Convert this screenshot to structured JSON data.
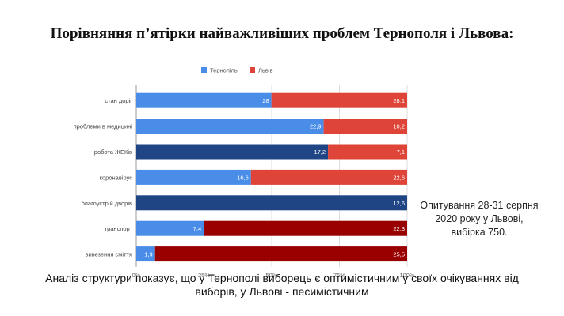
{
  "page": {
    "title": "Порівняння п’ятірки найважливіших проблем Тернополя і Львова:",
    "note": "Опитування 28-31 серпня 2020 року у Львові, вибірка 750.",
    "caption": "Аналіз структури показує, що у Тернополі виборець є оптимістичним у своїх очікуваннях від виборів, у Львові - песимістичним"
  },
  "chart_data": {
    "type": "bar",
    "orientation": "horizontal",
    "stacking": "percent",
    "categories": [
      "стан доріг",
      "проблеми в медицині",
      "робота ЖЕКів",
      "коронавірус",
      "благоустрій дворів",
      "транспорт",
      "вивезення сміття"
    ],
    "series": [
      {
        "name": "Тернопіль",
        "values": [
          28,
          22.9,
          17.2,
          16.6,
          null,
          7.4,
          1.9
        ],
        "labels": [
          "28",
          "22,9",
          "17,2",
          "16,6",
          "",
          "7,4",
          "1,9"
        ]
      },
      {
        "name": "Львів",
        "values": [
          28.1,
          10.2,
          7.1,
          22.6,
          12.6,
          22.3,
          25.5
        ],
        "labels": [
          "28,1",
          "10,2",
          "7,1",
          "22,6",
          "12,6",
          "22,3",
          "25,5"
        ]
      }
    ],
    "bar_colors": [
      [
        "#4a8de8",
        "#de4437"
      ],
      [
        "#4a8de8",
        "#de4437"
      ],
      [
        "#1f4585",
        "#de4437"
      ],
      [
        "#4a8de8",
        "#de4437"
      ],
      [
        "#1f4585",
        "#1f4585"
      ],
      [
        "#4a8de8",
        "#990000"
      ],
      [
        "#4a8de8",
        "#990000"
      ]
    ],
    "legend_colors": [
      "#4a8de8",
      "#de4437"
    ],
    "xticks": [
      "0%",
      "25%",
      "50%",
      "75%",
      "100%"
    ],
    "xlim": [
      0,
      100
    ],
    "grid": true,
    "legend_position": "top"
  }
}
